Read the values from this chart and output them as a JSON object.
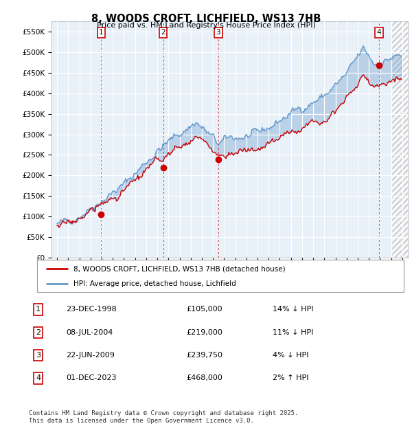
{
  "title": "8, WOODS CROFT, LICHFIELD, WS13 7HB",
  "subtitle": "Price paid vs. HM Land Registry's House Price Index (HPI)",
  "ylim": [
    0,
    575000
  ],
  "yticks": [
    0,
    50000,
    100000,
    150000,
    200000,
    250000,
    300000,
    350000,
    400000,
    450000,
    500000,
    550000
  ],
  "ytick_labels": [
    "£0",
    "£50K",
    "£100K",
    "£150K",
    "£200K",
    "£250K",
    "£300K",
    "£350K",
    "£400K",
    "£450K",
    "£500K",
    "£550K"
  ],
  "xlim": [
    1994.5,
    2026.5
  ],
  "transactions": [
    {
      "num": 1,
      "date": "23-DEC-1998",
      "price": 105000,
      "year": 1998.97,
      "hpi_pct": "14%",
      "direction": "↓"
    },
    {
      "num": 2,
      "date": "08-JUL-2004",
      "price": 219000,
      "year": 2004.52,
      "hpi_pct": "11%",
      "direction": "↓"
    },
    {
      "num": 3,
      "date": "22-JUN-2009",
      "price": 239750,
      "year": 2009.47,
      "hpi_pct": "4%",
      "direction": "↓"
    },
    {
      "num": 4,
      "date": "01-DEC-2023",
      "price": 468000,
      "year": 2023.92,
      "hpi_pct": "2%",
      "direction": "↑"
    }
  ],
  "legend_label_red": "8, WOODS CROFT, LICHFIELD, WS13 7HB (detached house)",
  "legend_label_blue": "HPI: Average price, detached house, Lichfield",
  "footer": "Contains HM Land Registry data © Crown copyright and database right 2025.\nThis data is licensed under the Open Government Licence v3.0.",
  "plot_bg": "#e8f0f8",
  "red_color": "#cc0000",
  "blue_color": "#6699cc"
}
